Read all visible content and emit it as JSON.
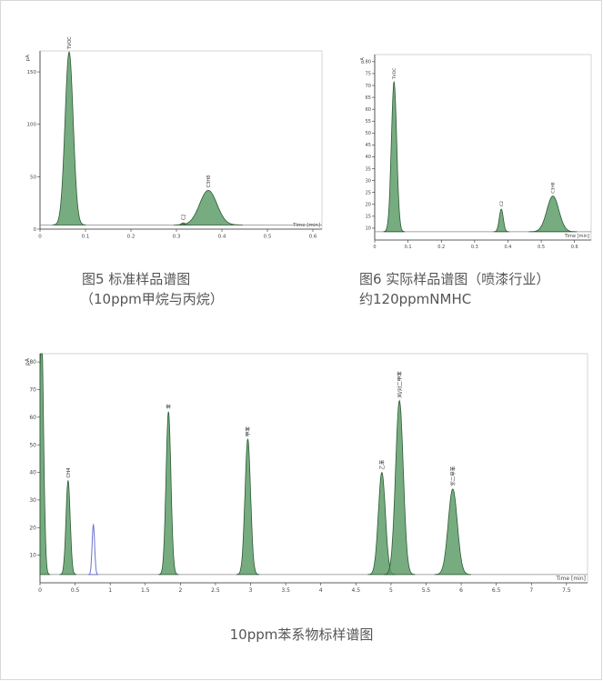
{
  "captions": {
    "fig5_line1": "图5 标准样品谱图",
    "fig5_line2": "（10ppm甲烷与丙烷）",
    "fig6_line1": "图6 实际样品谱图（喷漆行业）",
    "fig6_line2": "约120ppmNMHC",
    "fig7": "10ppm苯系物标样谱图"
  },
  "colors": {
    "peak_fill": "#5e9e6a",
    "peak_stroke": "#2d5a35",
    "baseline": "#8a8a8a",
    "blank_peak": "#6b74c9",
    "axis": "#333333"
  },
  "chart_data": [
    {
      "type": "line",
      "id": "fig5",
      "ylabel": "pA",
      "xlabel": "Time [min]",
      "xlim": [
        0,
        0.62
      ],
      "ylim": [
        0,
        170
      ],
      "xticks": [
        0,
        0.1,
        0.2,
        0.3,
        0.4,
        0.5,
        0.6
      ],
      "xtick_labels": [
        "0",
        "0.1",
        "0.2",
        "0.3",
        "0.4",
        "0.5",
        "0.6"
      ],
      "yticks": [
        0,
        50,
        100,
        150
      ],
      "ytick_labels": [
        "0",
        "50",
        "100",
        "150"
      ],
      "baseline": 4,
      "peaks": [
        {
          "label": "TVOC",
          "rt": 0.064,
          "height": 165,
          "width": 0.009,
          "fill": true
        },
        {
          "label": "C2",
          "rt": 0.315,
          "height": 2,
          "width": 0.004,
          "fill": true
        },
        {
          "label": "C3H8",
          "rt": 0.37,
          "height": 33,
          "width": 0.019,
          "fill": true
        }
      ]
    },
    {
      "type": "line",
      "id": "fig6",
      "ylabel": "pA",
      "xlabel": "Time [min]",
      "xlim": [
        0,
        0.65
      ],
      "ylim": [
        5,
        83
      ],
      "xticks": [
        0,
        0.1,
        0.2,
        0.3,
        0.4,
        0.5,
        0.6
      ],
      "xtick_labels": [
        "0",
        "0.1",
        "0.2",
        "0.3",
        "0.4",
        "0.5",
        "0.6"
      ],
      "yticks": [
        10,
        15,
        20,
        25,
        30,
        35,
        40,
        45,
        50,
        55,
        60,
        65,
        70,
        75,
        80
      ],
      "ytick_labels": [
        "10",
        "15",
        "20",
        "25",
        "30",
        "35",
        "40",
        "45",
        "50",
        "55",
        "60",
        "65",
        "70",
        "75",
        "80"
      ],
      "baseline": 8.5,
      "peaks": [
        {
          "label": "TVOC",
          "rt": 0.058,
          "height": 63,
          "width": 0.008,
          "fill": true
        },
        {
          "label": "C2",
          "rt": 0.38,
          "height": 9.5,
          "width": 0.006,
          "fill": true
        },
        {
          "label": "C3H8",
          "rt": 0.535,
          "height": 15,
          "width": 0.018,
          "fill": true
        }
      ]
    },
    {
      "type": "line",
      "id": "fig7",
      "ylabel": "pA",
      "xlabel": "Time [min]",
      "xlim": [
        0,
        7.8
      ],
      "ylim": [
        0,
        83
      ],
      "xticks": [
        0,
        0.5,
        1,
        1.5,
        2,
        2.5,
        3,
        3.5,
        4,
        4.5,
        5,
        5.5,
        6,
        6.5,
        7,
        7.5
      ],
      "xtick_labels": [
        "0",
        "0.5",
        "1",
        "1.5",
        "2",
        "2.5",
        "3",
        "3.5",
        "4",
        "4.5",
        "5",
        "5.5",
        "6",
        "6.5",
        "7",
        "7.5"
      ],
      "yticks": [
        10,
        20,
        30,
        40,
        50,
        60,
        70,
        80
      ],
      "ytick_labels": [
        "10",
        "20",
        "30",
        "40",
        "50",
        "60",
        "70",
        "80"
      ],
      "baseline": 3,
      "peaks": [
        {
          "label": "",
          "rt": 0.02,
          "height": 90,
          "width": 0.03,
          "fill": true
        },
        {
          "label": "CH4",
          "rt": 0.4,
          "height": 34,
          "width": 0.03,
          "fill": true
        },
        {
          "label": "",
          "rt": 0.76,
          "height": 18,
          "width": 0.018,
          "fill": false
        },
        {
          "label": "苯",
          "rt": 1.83,
          "height": 59,
          "width": 0.035,
          "fill": true
        },
        {
          "label": "甲苯",
          "rt": 2.96,
          "height": 49,
          "width": 0.04,
          "fill": true
        },
        {
          "label": "乙苯",
          "rt": 4.87,
          "height": 37,
          "width": 0.05,
          "fill": true
        },
        {
          "label": "间/对二甲苯",
          "rt": 5.12,
          "height": 63,
          "width": 0.055,
          "fill": true
        },
        {
          "label": "邻二甲苯",
          "rt": 5.88,
          "height": 31,
          "width": 0.065,
          "fill": true
        }
      ]
    }
  ]
}
